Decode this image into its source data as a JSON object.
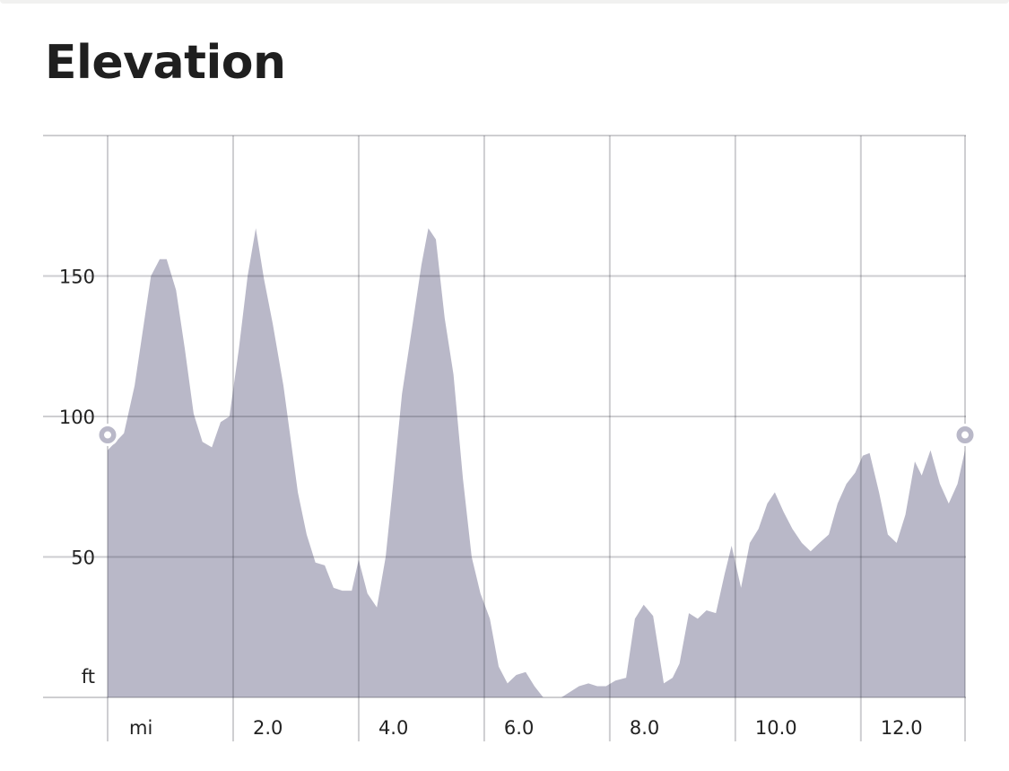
{
  "title": "Elevation",
  "chart_data": {
    "type": "area",
    "title": "Elevation",
    "xlabel": "mi",
    "ylabel": "ft",
    "xlim": [
      0,
      13.66
    ],
    "ylim": [
      0,
      200
    ],
    "grid": true,
    "x_ticks": [
      0,
      2,
      4,
      6,
      8,
      10,
      12
    ],
    "x_tick_labels": [
      "mi",
      "2.0",
      "4.0",
      "6.0",
      "8.0",
      "10.0",
      "12.0"
    ],
    "y_ticks": [
      0,
      50,
      100,
      150,
      200
    ],
    "y_tick_labels": [
      "ft",
      "50",
      "100",
      "150",
      ""
    ],
    "fill_color": "#b9b8c8",
    "marker_color": "#b9b8c8",
    "x": [
      0,
      0.26,
      0.43,
      0.69,
      0.83,
      0.94,
      1.09,
      1.23,
      1.37,
      1.51,
      1.66,
      1.8,
      1.94,
      2.09,
      2.23,
      2.36,
      2.49,
      2.63,
      2.8,
      3.03,
      3.17,
      3.31,
      3.46,
      3.6,
      3.74,
      3.89,
      4.0,
      4.14,
      4.29,
      4.43,
      4.54,
      4.69,
      4.86,
      5.0,
      5.11,
      5.23,
      5.37,
      5.51,
      5.66,
      5.8,
      5.94,
      6.09,
      6.23,
      6.37,
      6.51,
      6.66,
      6.8,
      6.94,
      7.09,
      7.23,
      7.37,
      7.51,
      7.66,
      7.8,
      7.94,
      8.09,
      8.26,
      8.4,
      8.54,
      8.69,
      8.86,
      9.0,
      9.11,
      9.26,
      9.4,
      9.54,
      9.69,
      9.83,
      9.94,
      10.09,
      10.23,
      10.37,
      10.51,
      10.63,
      10.77,
      10.91,
      11.06,
      11.2,
      11.34,
      11.49,
      11.63,
      11.77,
      11.91,
      12.03,
      12.14,
      12.29,
      12.43,
      12.57,
      12.71,
      12.86,
      12.97,
      13.11,
      13.26,
      13.4,
      13.54,
      13.66
    ],
    "y": [
      88,
      94,
      111,
      150,
      156,
      156,
      145,
      124,
      101,
      91,
      89,
      98,
      100,
      124,
      150,
      167,
      149,
      133,
      111,
      73,
      58,
      48,
      47,
      39,
      38,
      38,
      49,
      37,
      32,
      50,
      74,
      108,
      133,
      154,
      167,
      163,
      135,
      115,
      78,
      50,
      37,
      28,
      11,
      5,
      8,
      9,
      4,
      0,
      0,
      0,
      2,
      4,
      5,
      4,
      4,
      6,
      7,
      28,
      33,
      29,
      5,
      7,
      12,
      30,
      28,
      31,
      30,
      44,
      54,
      39,
      55,
      60,
      69,
      73,
      66,
      60,
      55,
      52,
      55,
      58,
      69,
      76,
      80,
      86,
      87,
      73,
      58,
      55,
      65,
      84,
      79,
      88,
      76,
      69,
      76,
      88
    ]
  }
}
